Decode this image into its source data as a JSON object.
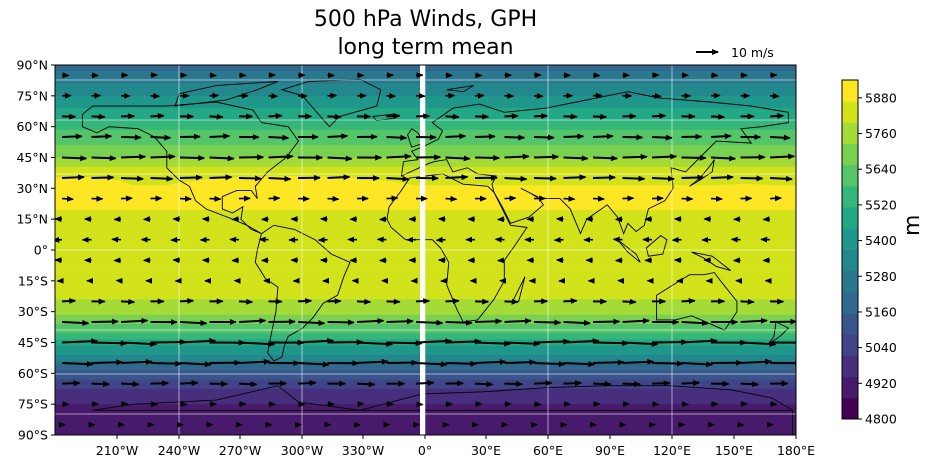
{
  "title": [
    "500 hPa Winds, GPH",
    "long term mean"
  ],
  "quiver_key": {
    "label": "10 m/s"
  },
  "colorbar": {
    "label": "m",
    "ticks": [
      "4800",
      "4920",
      "5040",
      "5160",
      "5280",
      "5400",
      "5520",
      "5640",
      "5760",
      "5880"
    ]
  },
  "colors": {
    "levels": [
      "#440154",
      "#481a6c",
      "#472f7d",
      "#414487",
      "#39568c",
      "#31688e",
      "#2a788e",
      "#23888e",
      "#1f988b",
      "#22a884",
      "#35b779",
      "#54c568",
      "#7ad151",
      "#a5db36",
      "#d2e21b",
      "#fde725"
    ]
  },
  "axes": {
    "y_ticks": [
      "90°N",
      "75°N",
      "60°N",
      "45°N",
      "30°N",
      "15°N",
      "0°",
      "15°S",
      "30°S",
      "45°S",
      "60°S",
      "75°S",
      "90°S"
    ],
    "x_ticks": [
      "210°W",
      "240°W",
      "270°W",
      "300°W",
      "330°W",
      "0°",
      "30°E",
      "60°E",
      "90°E",
      "120°E",
      "150°E",
      "180°E"
    ]
  },
  "chart_data": {
    "type": "heatmap",
    "title": "500 hPa Winds, GPH long term mean",
    "quantity": "GPH",
    "units": "m",
    "vmin": 4800,
    "vmax": 5940,
    "gph_zonal_profile": {
      "lat": [
        90,
        80,
        70,
        60,
        50,
        40,
        30,
        20,
        10,
        0,
        -10,
        -20,
        -30,
        -40,
        -50,
        -60,
        -70,
        -80,
        -90
      ],
      "gph": [
        5180,
        5320,
        5430,
        5560,
        5670,
        5800,
        5880,
        5870,
        5850,
        5840,
        5840,
        5830,
        5760,
        5600,
        5380,
        5130,
        4980,
        4900,
        4880
      ]
    },
    "wind_zonal_profile": {
      "lat": [
        85,
        75,
        65,
        55,
        45,
        35,
        25,
        15,
        5,
        -5,
        -15,
        -25,
        -35,
        -45,
        -55,
        -65,
        -75,
        -85
      ],
      "u_ms": [
        3,
        4,
        6,
        9,
        11,
        10,
        5,
        -3,
        -4,
        -3,
        -2,
        6,
        12,
        16,
        14,
        8,
        3,
        1
      ]
    }
  }
}
